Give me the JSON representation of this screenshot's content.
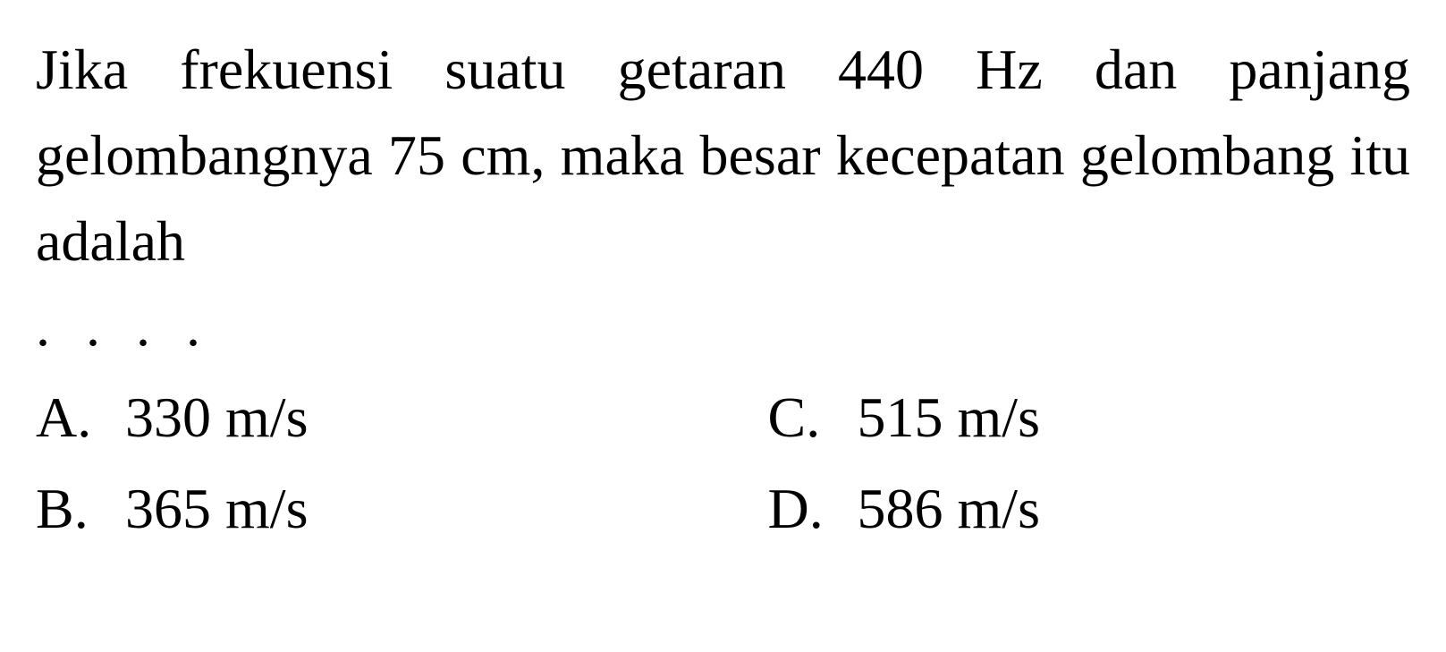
{
  "question": {
    "text": "Jika frekuensi suatu getaran 440 Hz dan panjang gelombangnya 75 cm, maka besar kecepatan gelombang itu adalah",
    "dots": ". . . ."
  },
  "options": [
    {
      "letter": "A.",
      "value": "330 m/s"
    },
    {
      "letter": "B.",
      "value": "365 m/s"
    },
    {
      "letter": "C.",
      "value": "515 m/s"
    },
    {
      "letter": "D.",
      "value": "586 m/s"
    }
  ],
  "styling": {
    "background_color": "#ffffff",
    "text_color": "#000000",
    "font_family": "Times New Roman",
    "question_fontsize": 64,
    "option_fontsize": 64,
    "line_height": 1.5
  }
}
